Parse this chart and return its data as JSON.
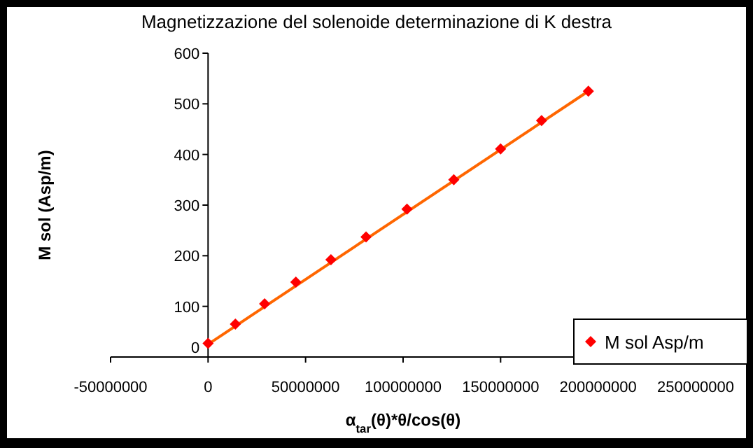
{
  "chart_data": {
    "type": "scatter",
    "title": "Magnetizzazione del solenoide determinazione di K destra",
    "xlabel": "α$_{tar}$(θ)*θ/cos(θ)",
    "ylabel": "M sol (Asp/m)",
    "series": [
      {
        "name": "M sol Asp/m",
        "color": "#ff0000",
        "marker": "diamond",
        "x": [
          0,
          14000000,
          29000000,
          45000000,
          63000000,
          81000000,
          102000000,
          126000000,
          150000000,
          171000000,
          195000000
        ],
        "values": [
          27,
          65,
          105,
          148,
          192,
          237,
          292,
          350,
          411,
          467,
          525
        ]
      },
      {
        "type": "line",
        "color": "#ff6600",
        "x": [
          0,
          195000000
        ],
        "values": [
          25,
          525
        ]
      }
    ],
    "xlim": [
      -50000000,
      250000000
    ],
    "xticks": [
      -50000000,
      0,
      50000000,
      100000000,
      150000000,
      200000000,
      250000000
    ],
    "ylim": [
      0,
      600
    ],
    "yticks": [
      0,
      100,
      200,
      300,
      400,
      500,
      600
    ],
    "grid": false,
    "legend": "right"
  }
}
